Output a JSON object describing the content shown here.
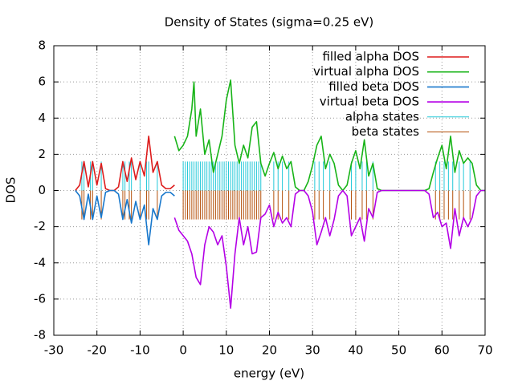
{
  "chart_data": {
    "type": "line",
    "title": "Density of States (sigma=0.25 eV)",
    "x_label": "energy (eV)",
    "y_label": "DOS",
    "xlim": [
      -30,
      70
    ],
    "ylim": [
      -8,
      8
    ],
    "xticks": [
      -30,
      -20,
      -10,
      0,
      10,
      20,
      30,
      40,
      50,
      60,
      70
    ],
    "yticks": [
      -8,
      -6,
      -4,
      -2,
      0,
      2,
      4,
      6,
      8
    ],
    "grid": true,
    "legend": "top right",
    "series": [
      {
        "name": "filled alpha DOS",
        "color": "#dd1c1c",
        "style": "lines",
        "x": [
          -25,
          -24,
          -23,
          -22,
          -21,
          -20,
          -19,
          -18,
          -17,
          -16,
          -15,
          -14,
          -13,
          -12,
          -11,
          -10,
          -9,
          -8,
          -7,
          -6,
          -5,
          -4,
          -3,
          -2
        ],
        "values": [
          0,
          0.3,
          1.6,
          0.2,
          1.6,
          0.3,
          1.5,
          0.1,
          0,
          0,
          0.2,
          1.6,
          0.5,
          1.8,
          0.6,
          1.6,
          0.8,
          3.0,
          1.0,
          1.6,
          0.3,
          0.1,
          0.1,
          0.3
        ]
      },
      {
        "name": "virtual alpha DOS",
        "color": "#18b418",
        "style": "lines",
        "x": [
          -2,
          -1,
          0,
          1,
          2,
          2.5,
          3,
          4,
          5,
          6,
          7,
          8,
          9,
          10,
          11,
          12,
          13,
          14,
          15,
          16,
          17,
          18,
          19,
          20,
          21,
          22,
          23,
          24,
          25,
          26,
          27,
          28,
          29,
          30,
          31,
          32,
          33,
          34,
          35,
          36,
          37,
          38,
          39,
          40,
          41,
          42,
          43,
          44,
          45,
          46,
          56,
          57,
          58,
          59,
          60,
          61,
          62,
          63,
          64,
          65,
          66,
          67,
          68,
          69,
          70
        ],
        "values": [
          3.0,
          2.2,
          2.5,
          3.0,
          4.5,
          6.0,
          3.0,
          4.5,
          2.0,
          2.8,
          1.0,
          2.0,
          3.0,
          5.0,
          6.1,
          2.5,
          1.5,
          2.5,
          1.8,
          3.5,
          3.8,
          1.5,
          0.8,
          1.5,
          2.1,
          1.2,
          1.9,
          1.2,
          1.6,
          0.2,
          0,
          0,
          0.5,
          1.4,
          2.5,
          3.0,
          1.2,
          2.0,
          1.5,
          0.3,
          0,
          0.3,
          1.5,
          2.2,
          1.2,
          2.8,
          0.8,
          1.5,
          0.1,
          0,
          0,
          0.1,
          1.0,
          1.8,
          2.5,
          1.2,
          3.0,
          1.0,
          2.2,
          1.5,
          1.8,
          1.5,
          0.3,
          0,
          0
        ]
      },
      {
        "name": "filled beta DOS",
        "color": "#1878cc",
        "style": "lines",
        "x": [
          -25,
          -24,
          -23,
          -22,
          -21,
          -20,
          -19,
          -18,
          -17,
          -16,
          -15,
          -14,
          -13,
          -12,
          -11,
          -10,
          -9,
          -8,
          -7,
          -6,
          -5,
          -4,
          -3,
          -2
        ],
        "values": [
          0,
          -0.3,
          -1.6,
          -0.2,
          -1.6,
          -0.3,
          -1.5,
          -0.1,
          0,
          0,
          -0.2,
          -1.6,
          -0.5,
          -1.8,
          -0.6,
          -1.6,
          -0.8,
          -3.0,
          -1.0,
          -1.6,
          -0.3,
          -0.1,
          -0.1,
          -0.3
        ]
      },
      {
        "name": "virtual beta DOS",
        "color": "#b400e6",
        "style": "lines",
        "x": [
          -2,
          -1,
          0,
          1,
          2,
          3,
          4,
          5,
          6,
          7,
          8,
          9,
          10,
          11,
          12,
          13,
          14,
          15,
          16,
          17,
          18,
          19,
          20,
          21,
          22,
          23,
          24,
          25,
          26,
          27,
          28,
          29,
          30,
          31,
          32,
          33,
          34,
          35,
          36,
          37,
          38,
          39,
          40,
          41,
          42,
          43,
          44,
          45,
          46,
          56,
          57,
          58,
          59,
          60,
          61,
          62,
          63,
          64,
          65,
          66,
          67,
          68,
          69,
          70
        ],
        "values": [
          -1.5,
          -2.2,
          -2.5,
          -2.8,
          -3.5,
          -4.8,
          -5.2,
          -3.0,
          -2.0,
          -2.3,
          -3.0,
          -2.5,
          -4.2,
          -6.5,
          -3.5,
          -1.5,
          -3.0,
          -2.0,
          -3.5,
          -3.4,
          -1.5,
          -1.3,
          -0.8,
          -2.0,
          -1.2,
          -1.8,
          -1.5,
          -2.0,
          -0.2,
          0,
          0,
          -0.3,
          -1.2,
          -3.0,
          -2.3,
          -1.5,
          -2.5,
          -1.6,
          -0.3,
          0,
          -0.3,
          -2.5,
          -2.0,
          -1.5,
          -2.8,
          -1.0,
          -1.5,
          -0.1,
          0,
          0,
          -0.2,
          -1.5,
          -1.2,
          -2.0,
          -1.8,
          -3.2,
          -1.0,
          -2.5,
          -1.5,
          -2.0,
          -1.5,
          -0.3,
          0,
          0
        ]
      },
      {
        "name": "alpha states",
        "color": "#22c8d8",
        "style": "impulses",
        "x": [
          -23.5,
          -23,
          -21.5,
          -21,
          -19,
          -14,
          -13.5,
          -12.5,
          -12,
          -10,
          -8.5,
          -8,
          -6,
          0,
          0.5,
          1,
          1.5,
          2,
          2.5,
          3,
          3.5,
          4,
          4.5,
          5,
          5.5,
          6,
          6.5,
          7,
          7.5,
          8,
          8.5,
          9,
          9.5,
          10,
          10.5,
          11,
          11.5,
          12,
          12.5,
          13,
          13.5,
          14,
          14.5,
          15,
          15.5,
          16,
          16.5,
          17,
          17.5,
          18,
          21,
          22,
          23,
          24.5,
          30.5,
          31.5,
          32.5,
          34,
          39,
          40,
          41.5,
          42.5,
          44,
          58.5,
          59.5,
          60.5,
          61.5,
          62.5,
          64,
          65,
          66.5
        ],
        "values": [
          1.6,
          1.6,
          1.6,
          1.6,
          1.6,
          1.6,
          1.6,
          1.6,
          1.6,
          1.6,
          1.6,
          1.6,
          1.6,
          1.6,
          1.6,
          1.6,
          1.6,
          1.6,
          1.6,
          1.6,
          1.6,
          1.6,
          1.6,
          1.6,
          1.6,
          1.6,
          1.6,
          1.6,
          1.6,
          1.6,
          1.6,
          1.6,
          1.6,
          1.6,
          1.6,
          1.6,
          1.6,
          1.6,
          1.6,
          1.6,
          1.6,
          1.6,
          1.6,
          1.6,
          1.6,
          1.6,
          1.6,
          1.6,
          1.6,
          1.6,
          1.6,
          1.6,
          1.6,
          1.6,
          1.6,
          1.6,
          1.6,
          1.6,
          1.6,
          1.6,
          1.6,
          1.6,
          1.6,
          1.6,
          1.6,
          1.6,
          1.6,
          1.6,
          1.6,
          1.6,
          1.6
        ]
      },
      {
        "name": "beta states",
        "color": "#b4500a",
        "style": "impulses",
        "x": [
          -23.5,
          -23,
          -21.5,
          -21,
          -19,
          -14,
          -13.5,
          -12.5,
          -12,
          -10,
          -8.5,
          -8,
          -6,
          0,
          0.5,
          1,
          1.5,
          2,
          2.5,
          3,
          3.5,
          4,
          4.5,
          5,
          5.5,
          6,
          6.5,
          7,
          7.5,
          8,
          8.5,
          9,
          9.5,
          10,
          10.5,
          11,
          11.5,
          12,
          12.5,
          13,
          13.5,
          14,
          14.5,
          15,
          15.5,
          16,
          16.5,
          17,
          17.5,
          18,
          21,
          22,
          23,
          24.5,
          30.5,
          31.5,
          32.5,
          34,
          39,
          40,
          41.5,
          42.5,
          44,
          58.5,
          59.5,
          60.5,
          61.5,
          62.5,
          64,
          65,
          66.5
        ],
        "values": [
          -1.6,
          -1.6,
          -1.6,
          -1.6,
          -1.6,
          -1.6,
          -1.6,
          -1.6,
          -1.6,
          -1.6,
          -1.6,
          -1.6,
          -1.6,
          -1.6,
          -1.6,
          -1.6,
          -1.6,
          -1.6,
          -1.6,
          -1.6,
          -1.6,
          -1.6,
          -1.6,
          -1.6,
          -1.6,
          -1.6,
          -1.6,
          -1.6,
          -1.6,
          -1.6,
          -1.6,
          -1.6,
          -1.6,
          -1.6,
          -1.6,
          -1.6,
          -1.6,
          -1.6,
          -1.6,
          -1.6,
          -1.6,
          -1.6,
          -1.6,
          -1.6,
          -1.6,
          -1.6,
          -1.6,
          -1.6,
          -1.6,
          -1.6,
          -1.6,
          -1.6,
          -1.6,
          -1.6,
          -1.6,
          -1.6,
          -1.6,
          -1.6,
          -1.6,
          -1.6,
          -1.6,
          -1.6,
          -1.6,
          -1.6,
          -1.6,
          -1.6,
          -1.6,
          -1.6,
          -1.6,
          -1.6,
          -1.6
        ]
      }
    ]
  }
}
